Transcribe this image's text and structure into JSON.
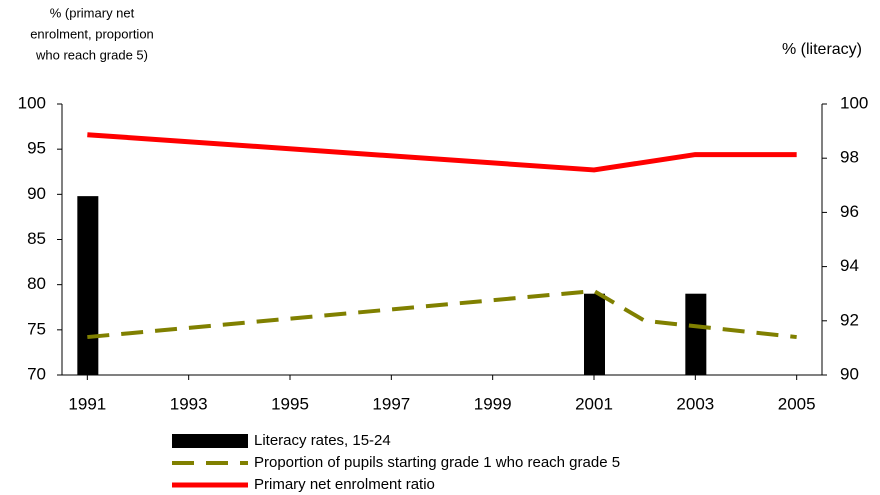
{
  "chart_data": {
    "type": "combo",
    "y_label": [
      "% (primary net",
      "enrolment, proportion",
      "who reach grade 5)"
    ],
    "y2_label": "% (literacy)",
    "xlim": [
      1990.5,
      2005.5
    ],
    "xticks": [
      1991,
      1993,
      1995,
      1997,
      1999,
      2001,
      2003,
      2005
    ],
    "ylim": [
      70,
      100
    ],
    "yticks": [
      70,
      75,
      80,
      85,
      90,
      95,
      100
    ],
    "y2lim": [
      90,
      100
    ],
    "y2ticks": [
      90,
      92,
      94,
      96,
      98,
      100
    ],
    "series": [
      {
        "name": "Literacy rates, 15-24",
        "type": "bar",
        "axis": "y2",
        "color": "#000000",
        "x": [
          1991,
          2001,
          2003
        ],
        "values": [
          96.6,
          93.0,
          93.0
        ]
      },
      {
        "name": "Proportion of pupils starting grade 1 who reach grade 5",
        "type": "line",
        "dashed": true,
        "color": "#808000",
        "x": [
          1991,
          2001,
          2002,
          2005
        ],
        "values": [
          74.2,
          79.3,
          76.0,
          74.2
        ]
      },
      {
        "name": "Primary net enrolment ratio",
        "type": "line",
        "dashed": false,
        "color": "#ff0000",
        "x": [
          1991,
          2001,
          2003,
          2005
        ],
        "values": [
          96.6,
          92.7,
          94.4,
          94.4
        ]
      }
    ]
  }
}
